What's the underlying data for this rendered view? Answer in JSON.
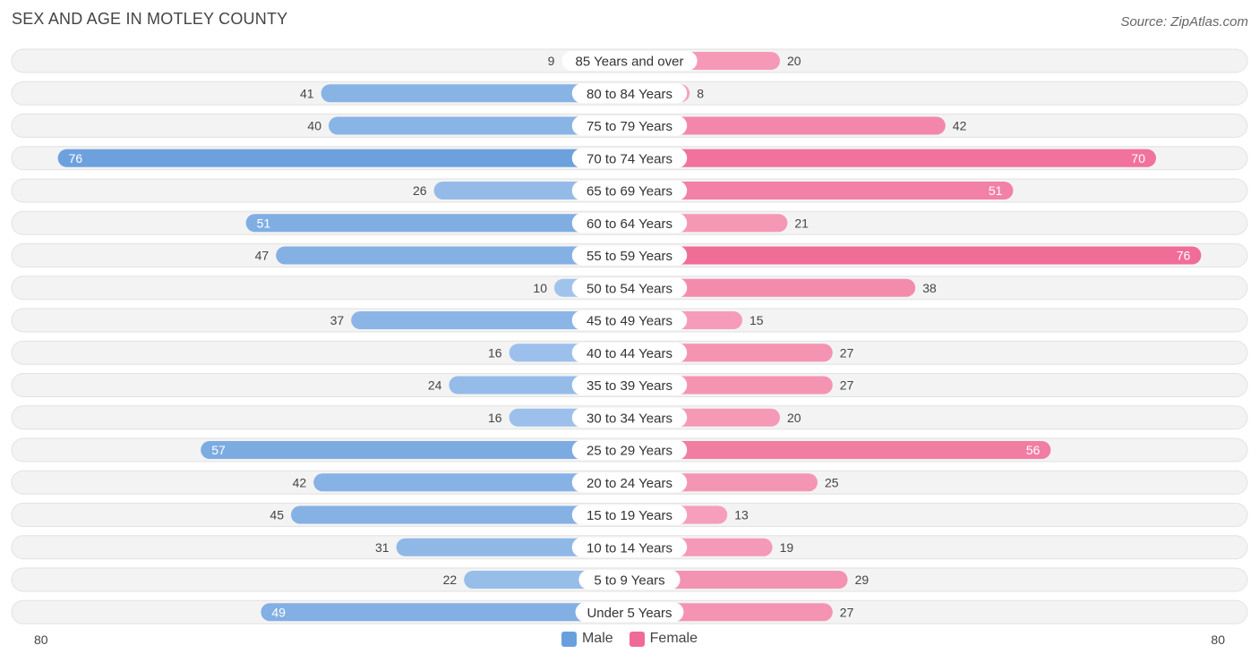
{
  "title": "SEX AND AGE IN MOTLEY COUNTY",
  "source": "Source: ZipAtlas.com",
  "colors": {
    "male": "#6a9fdd",
    "female": "#f06a96",
    "male_light": "#a8c8ee",
    "female_light": "#f7a8c2"
  },
  "legend": {
    "male": "Male",
    "female": "Female"
  },
  "axis": {
    "left_label": "80",
    "right_label": "80"
  },
  "chart_data": {
    "type": "bar",
    "orientation": "horizontal-diverging",
    "xlim": [
      0,
      80
    ],
    "categories": [
      "85 Years and over",
      "80 to 84 Years",
      "75 to 79 Years",
      "70 to 74 Years",
      "65 to 69 Years",
      "60 to 64 Years",
      "55 to 59 Years",
      "50 to 54 Years",
      "45 to 49 Years",
      "40 to 44 Years",
      "35 to 39 Years",
      "30 to 34 Years",
      "25 to 29 Years",
      "20 to 24 Years",
      "15 to 19 Years",
      "10 to 14 Years",
      "5 to 9 Years",
      "Under 5 Years"
    ],
    "series": [
      {
        "name": "Male",
        "values": [
          9,
          41,
          40,
          76,
          26,
          51,
          47,
          10,
          37,
          16,
          24,
          16,
          57,
          42,
          45,
          31,
          22,
          49
        ]
      },
      {
        "name": "Female",
        "values": [
          20,
          8,
          42,
          70,
          51,
          21,
          76,
          38,
          15,
          27,
          27,
          20,
          56,
          25,
          13,
          19,
          29,
          27
        ]
      }
    ],
    "legend_position": "bottom-center"
  }
}
